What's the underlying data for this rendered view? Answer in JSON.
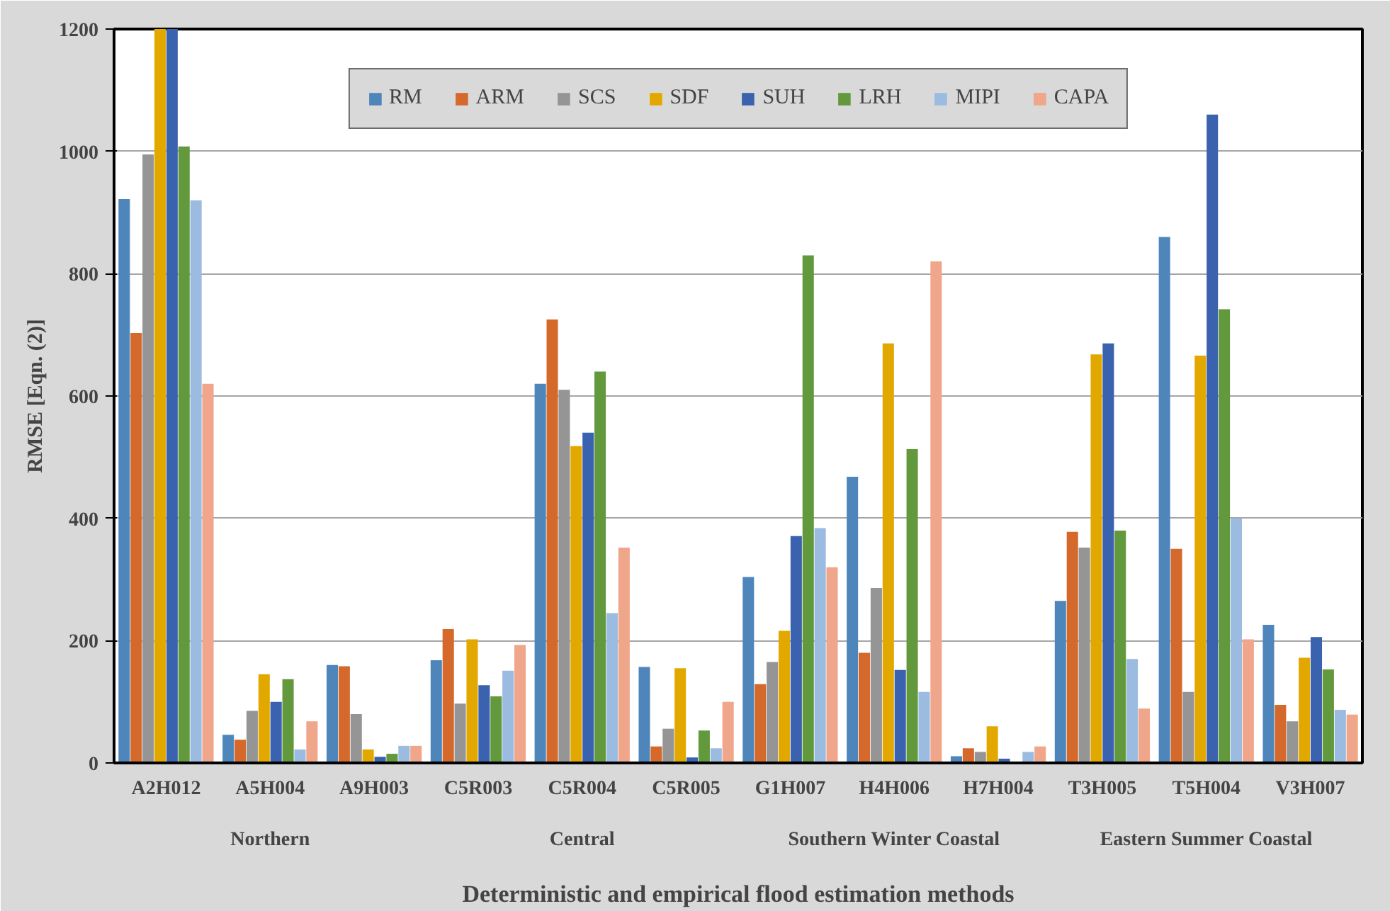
{
  "chart_data": {
    "type": "bar",
    "ylabel": "RMSE [Eqn. (2)]",
    "xlabel": "Deterministic and empirical flood estimation methods",
    "categories": [
      "A2H012",
      "A5H004",
      "A9H003",
      "C5R003",
      "C5R004",
      "C5R005",
      "G1H007",
      "H4H006",
      "H7H004",
      "T3H005",
      "T5H004",
      "V3H007"
    ],
    "annotations": [
      "Northern",
      "Central",
      "Southern Winter Coastal",
      "Eastern Summer Coastal"
    ],
    "series": [
      {
        "name": "RM",
        "color": "#4e86bc",
        "values": [
          922,
          46,
          160,
          168,
          620,
          157,
          304,
          468,
          11,
          265,
          860,
          226
        ]
      },
      {
        "name": "ARM",
        "color": "#d5692b",
        "values": [
          703,
          38,
          158,
          219,
          725,
          27,
          129,
          180,
          24,
          378,
          350,
          95
        ]
      },
      {
        "name": "SCS",
        "color": "#959595",
        "values": [
          995,
          85,
          80,
          97,
          610,
          56,
          165,
          286,
          18,
          352,
          116,
          68
        ]
      },
      {
        "name": "SDF",
        "color": "#e3a800",
        "values": [
          1200,
          145,
          22,
          202,
          518,
          155,
          216,
          686,
          60,
          668,
          666,
          172
        ]
      },
      {
        "name": "SUH",
        "color": "#3a62ae",
        "values": [
          1200,
          100,
          10,
          127,
          540,
          9,
          371,
          152,
          7,
          686,
          1060,
          206
        ]
      },
      {
        "name": "LRH",
        "color": "#63993d",
        "values": [
          1008,
          137,
          15,
          109,
          640,
          53,
          830,
          513,
          2,
          380,
          742,
          153
        ]
      },
      {
        "name": "MIPI",
        "color": "#9bbbe1",
        "values": [
          920,
          22,
          28,
          151,
          245,
          24,
          384,
          116,
          18,
          170,
          400,
          87
        ]
      },
      {
        "name": "CAPA",
        "color": "#f0a68a",
        "values": [
          620,
          68,
          28,
          193,
          352,
          100,
          320,
          820,
          27,
          89,
          202,
          79
        ]
      }
    ],
    "ylim": [
      0,
      1200
    ],
    "yticks": [
      0,
      200,
      400,
      600,
      800,
      1000,
      1200
    ],
    "grid": "y",
    "legend": "top"
  }
}
